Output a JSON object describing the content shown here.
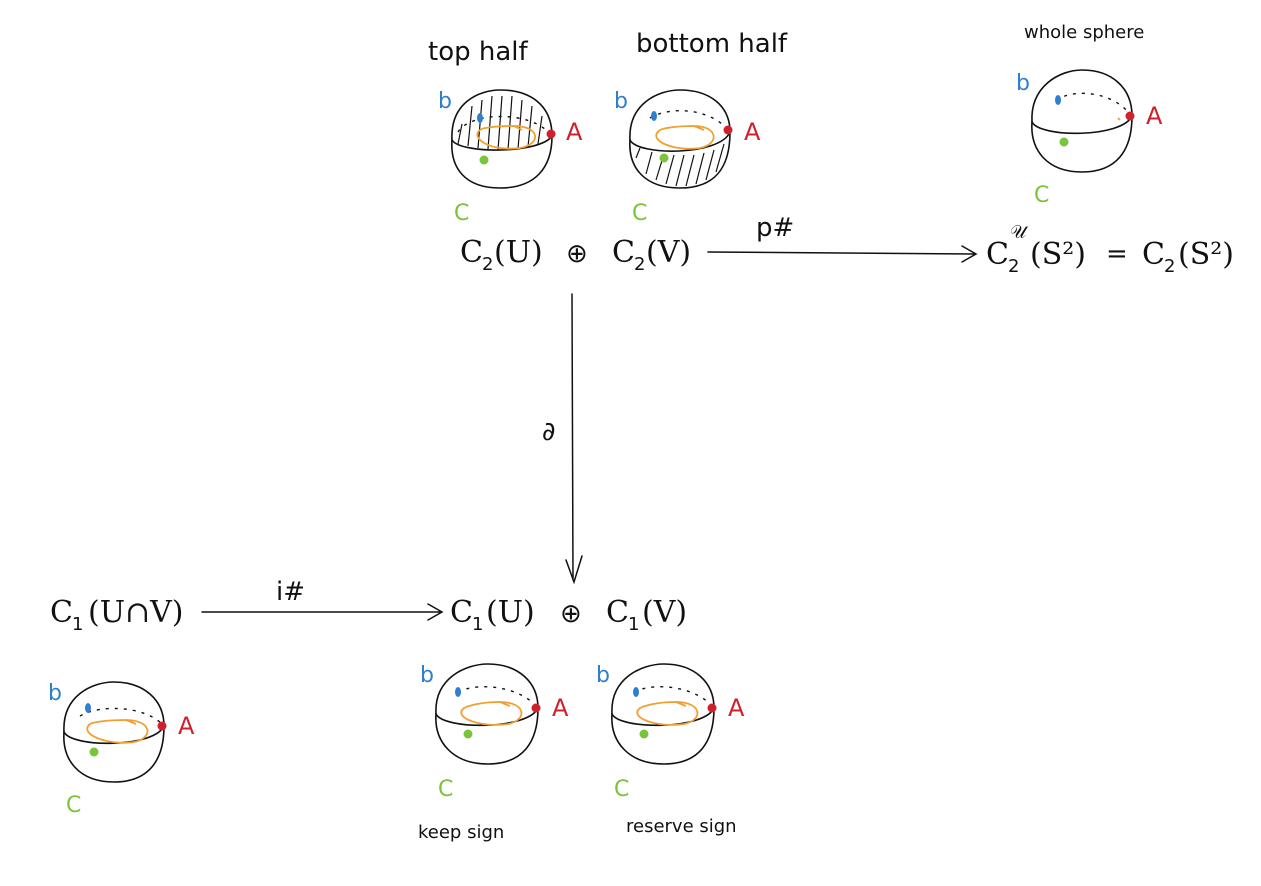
{
  "colors": {
    "ink": "#111111",
    "point_b": "#2f7fd0",
    "point_a": "#d0202a",
    "point_c": "#7ac43c",
    "loop": "#f0a030"
  },
  "top_labels": {
    "top_half": "top half",
    "bottom_half": "bottom half",
    "whole_sphere": "whole sphere"
  },
  "points": {
    "b": "b",
    "a": "A",
    "c": "C"
  },
  "bottom_labels": {
    "keep_sign": "keep sign",
    "reserve_sign": "reserve sign"
  },
  "complex": {
    "c2u": "C",
    "c2u_sub": "2",
    "c2u_arg": "(U)",
    "oplus": "⊕",
    "c2v": "C",
    "c2v_sub": "2",
    "c2v_arg": "(V)",
    "p_sharp": "p#",
    "c2_cover": "C",
    "c2_cover_sub": "2",
    "c2_cover_sup": "𝒰",
    "c2_cover_arg": "(S²)",
    "equals": "=",
    "c2s2": "C",
    "c2s2_sub": "2",
    "c2s2_arg": "(S²)",
    "boundary": "∂",
    "c1_cap": "C",
    "c1_cap_sub": "1",
    "c1_cap_arg": "(U∩V)",
    "i_sharp": "i#",
    "c1u": "C",
    "c1u_sub": "1",
    "c1u_arg": "(U)",
    "oplus2": "⊕",
    "c1v": "C",
    "c1v_sub": "1",
    "c1v_arg": "(V)"
  },
  "spheres": [
    {
      "id": "top-half",
      "hatch": "top"
    },
    {
      "id": "bottom-half",
      "hatch": "bottom"
    },
    {
      "id": "whole-sphere",
      "hatch": "none"
    },
    {
      "id": "intersection",
      "hatch": "none"
    },
    {
      "id": "c1-u",
      "hatch": "none"
    },
    {
      "id": "c1-v",
      "hatch": "none"
    }
  ]
}
